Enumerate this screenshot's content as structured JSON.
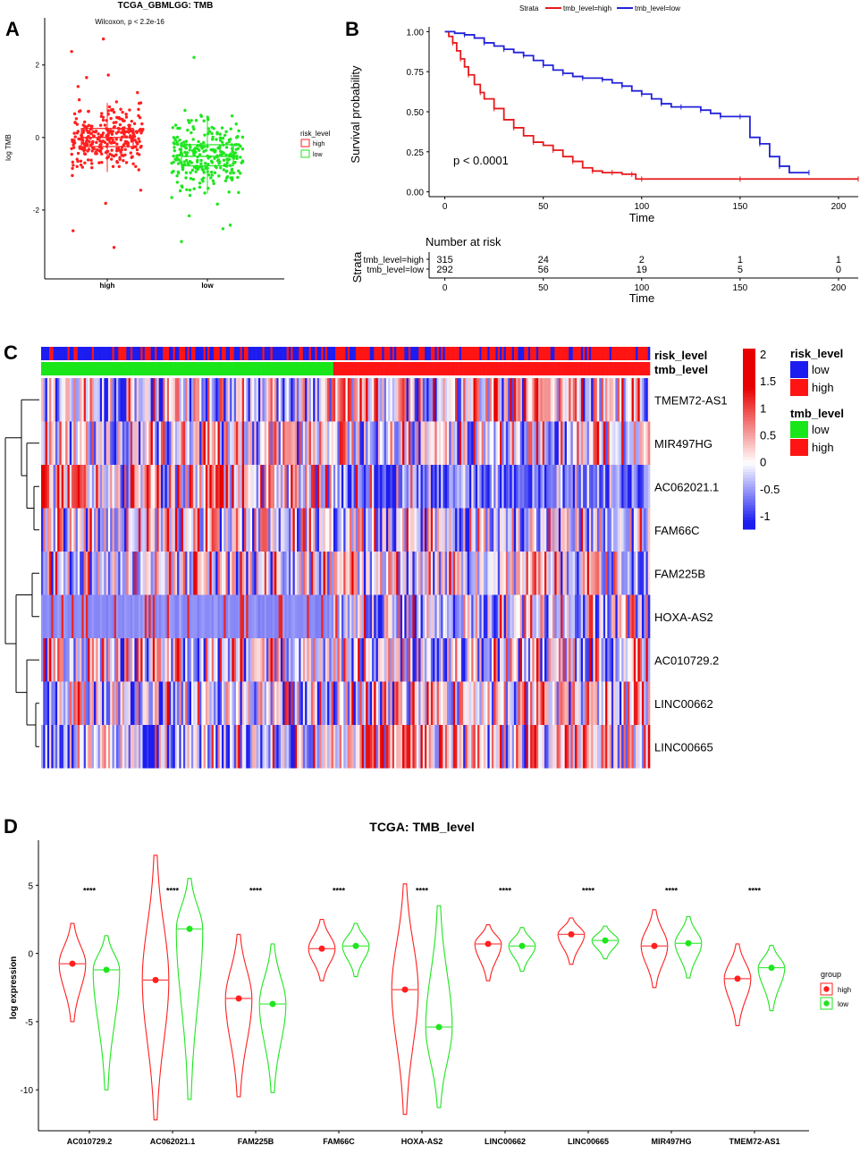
{
  "colors": {
    "high": "#ff1f1f",
    "low": "#1fe61f",
    "tmb_high": "#e8191b",
    "tmb_low": "#2323d9",
    "heat_hi": "#e8191b",
    "heat_mid": "#ffffff",
    "heat_lo": "#1c1cf0"
  },
  "chart_data": [
    {
      "panel": "A",
      "type": "boxplot",
      "title": "TCGA_GBMLGG: TMB",
      "annotation": "Wilcoxon, p < 2.2e-16",
      "ylabel": "log TMB",
      "xlabel": "",
      "categories": [
        "high",
        "low"
      ],
      "yticks": [
        -2,
        0,
        2
      ],
      "ylim": [
        -3.9,
        3.3
      ],
      "legend_title": "risk_level",
      "legend_labels": [
        "high",
        "low"
      ],
      "boxes": [
        {
          "name": "high",
          "q1": -0.25,
          "median": 0.0,
          "q3": 0.25,
          "whisker_low": -0.95,
          "whisker_high": 0.95,
          "n_points": 315
        },
        {
          "name": "low",
          "q1": -0.78,
          "median": -0.52,
          "q3": -0.2,
          "whisker_low": -1.55,
          "whisker_high": 0.62,
          "n_points": 292
        }
      ]
    },
    {
      "panel": "B",
      "type": "line",
      "legend_title": "Strata",
      "legend_labels": [
        "tmb_level=high",
        "tmb_level=low"
      ],
      "xlabel": "Time",
      "ylabel": "Survival probability",
      "xticks": [
        0,
        50,
        100,
        150,
        200
      ],
      "yticks": [
        0,
        0.25,
        0.5,
        0.75,
        1
      ],
      "yticklabels": [
        "0.00",
        "0.25",
        "0.50",
        "0.75",
        "1.00"
      ],
      "xlim": [
        -8,
        210
      ],
      "ylim": [
        -0.03,
        1.03
      ],
      "pvalue": "p < 0.0001",
      "series": [
        {
          "name": "tmb_level=high",
          "x": [
            0,
            2,
            4,
            6,
            8,
            10,
            12,
            15,
            18,
            20,
            25,
            30,
            35,
            40,
            45,
            50,
            55,
            60,
            65,
            70,
            75,
            80,
            85,
            90,
            95,
            97,
            100,
            120,
            150,
            200,
            210
          ],
          "y": [
            1,
            0.97,
            0.93,
            0.88,
            0.83,
            0.78,
            0.73,
            0.67,
            0.62,
            0.58,
            0.52,
            0.45,
            0.4,
            0.35,
            0.31,
            0.29,
            0.26,
            0.22,
            0.19,
            0.15,
            0.13,
            0.12,
            0.12,
            0.11,
            0.11,
            0.08,
            0.08,
            0.08,
            0.08,
            0.08,
            0.08
          ]
        },
        {
          "name": "tmb_level=low",
          "x": [
            0,
            5,
            10,
            15,
            20,
            25,
            30,
            35,
            40,
            45,
            50,
            55,
            60,
            65,
            70,
            75,
            80,
            85,
            90,
            95,
            100,
            105,
            110,
            115,
            120,
            125,
            130,
            135,
            140,
            145,
            150,
            155,
            160,
            165,
            170,
            175,
            185
          ],
          "y": [
            1,
            0.99,
            0.98,
            0.96,
            0.93,
            0.91,
            0.89,
            0.87,
            0.85,
            0.82,
            0.79,
            0.76,
            0.74,
            0.72,
            0.71,
            0.71,
            0.7,
            0.68,
            0.66,
            0.63,
            0.61,
            0.58,
            0.55,
            0.53,
            0.53,
            0.53,
            0.51,
            0.49,
            0.47,
            0.47,
            0.47,
            0.34,
            0.3,
            0.22,
            0.16,
            0.12,
            0.12
          ]
        }
      ],
      "risk_table": {
        "title": "Number at risk",
        "ylabel": "Strata",
        "xlabel": "Time",
        "rows": [
          {
            "label": "tmb_level=high",
            "values": [
              "315",
              "24",
              "2",
              "1",
              "1"
            ]
          },
          {
            "label": "tmb_level=low",
            "values": [
              "292",
              "56",
              "19",
              "5",
              "0"
            ]
          }
        ]
      }
    },
    {
      "panel": "C",
      "type": "heatmap",
      "annotation_rows": [
        "risk_level",
        "tmb_level"
      ],
      "rows": [
        "TMEM72-AS1",
        "MIR497HG",
        "AC062021.1",
        "FAM66C",
        "FAM225B",
        "HOXA-AS2",
        "AC010729.2",
        "LINC00662",
        "LINC00665"
      ],
      "colorbar_ticks": [
        "2",
        "1.5",
        "1",
        "0.5",
        "0",
        "-0.5",
        "-1"
      ],
      "colorbar_values": [
        2,
        1.5,
        1,
        0.5,
        0,
        -0.5,
        -1
      ],
      "legends": [
        {
          "title": "risk_level",
          "items": [
            {
              "label": "low",
              "color": "#1c1cf0"
            },
            {
              "label": "high",
              "color": "#ff1414"
            }
          ]
        },
        {
          "title": "tmb_level",
          "items": [
            {
              "label": "low",
              "color": "#19e619"
            },
            {
              "label": "high",
              "color": "#ff1414"
            }
          ]
        }
      ],
      "row_bias": [
        0.25,
        -0.05,
        -0.35,
        -0.15,
        0.1,
        -0.15,
        -0.05,
        0.2,
        0.35
      ],
      "low_group_fraction": 0.48
    },
    {
      "panel": "D",
      "type": "violin",
      "title": "TCGA: TMB_level",
      "ylabel": "log expression",
      "yticks": [
        -10,
        -5,
        0,
        5
      ],
      "ylim": [
        -13,
        8.3
      ],
      "significance": "****",
      "legend_title": "group",
      "legend_labels": [
        "high",
        "low"
      ],
      "categories": [
        "AC010729.2",
        "AC062021.1",
        "FAM225B",
        "FAM66C",
        "HOXA-AS2",
        "LINC00662",
        "LINC00665",
        "MIR497HG",
        "TMEM72-AS1"
      ],
      "series": [
        {
          "name": "high",
          "means": [
            -0.75,
            -1.95,
            -3.3,
            0.35,
            -2.65,
            0.7,
            1.4,
            0.55,
            -1.85
          ],
          "min": [
            -5.0,
            -12.2,
            -10.5,
            -2.0,
            -11.8,
            -2.0,
            -0.8,
            -2.5,
            -5.3
          ],
          "max": [
            2.2,
            7.2,
            1.4,
            2.5,
            5.1,
            2.1,
            2.6,
            3.2,
            0.7
          ]
        },
        {
          "name": "low",
          "means": [
            -1.2,
            1.8,
            -3.7,
            0.55,
            -5.4,
            0.55,
            0.95,
            0.75,
            -1.05
          ],
          "min": [
            -10.0,
            -10.7,
            -10.2,
            -1.7,
            -11.3,
            -1.3,
            -0.4,
            -1.8,
            -4.2
          ],
          "max": [
            1.3,
            5.5,
            0.7,
            2.2,
            3.5,
            1.9,
            2.0,
            2.7,
            0.6
          ]
        }
      ]
    }
  ],
  "panel_letters": [
    "A",
    "B",
    "C",
    "D"
  ]
}
